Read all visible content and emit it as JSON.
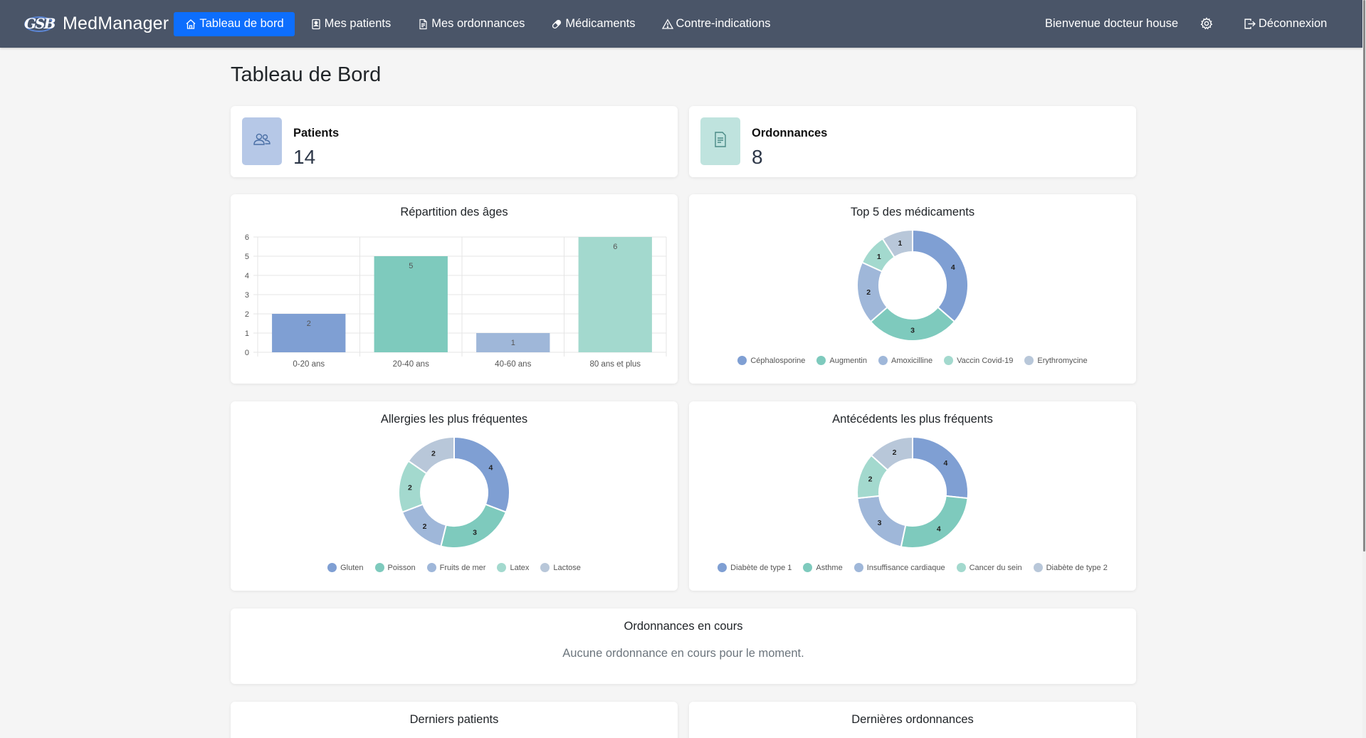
{
  "app": {
    "name": "MedManager",
    "logo_text": "GSB"
  },
  "nav": {
    "items": [
      {
        "label": "Tableau de bord",
        "icon": "home-icon",
        "active": true
      },
      {
        "label": "Mes patients",
        "icon": "patient-file-icon"
      },
      {
        "label": "Mes ordonnances",
        "icon": "document-icon"
      },
      {
        "label": "Médicaments",
        "icon": "pill-icon"
      },
      {
        "label": "Contre-indications",
        "icon": "warning-triangle-icon"
      }
    ],
    "welcome": "Bienvenue docteur house",
    "settings_icon": "gear-icon",
    "logout_label": "Déconnexion"
  },
  "page": {
    "title": "Tableau de Bord"
  },
  "stats": [
    {
      "label": "Patients",
      "value": "14",
      "icon": "users-icon",
      "color": "#b6c8e7"
    },
    {
      "label": "Ordonnances",
      "value": "8",
      "icon": "prescription-icon",
      "color": "#bfe3de"
    }
  ],
  "colors": {
    "blue": "#7f9fd3",
    "teal": "#7ecabd",
    "light_blue": "#9fb7d9",
    "light_teal": "#a3d9ce",
    "gray_blue": "#b8c7d9",
    "primary": "#0d6efd",
    "navbar": "#4a5568"
  },
  "chart_data": [
    {
      "type": "bar",
      "title": "Répartition des âges",
      "categories": [
        "0-20 ans",
        "20-40 ans",
        "40-60 ans",
        "80 ans et plus"
      ],
      "values": [
        2,
        5,
        1,
        6
      ],
      "colors": [
        "#7f9fd3",
        "#7ecabd",
        "#9fb7d9",
        "#a3d9ce"
      ],
      "ylim": [
        0,
        6
      ],
      "yticks": [
        "0",
        "1",
        "2",
        "3",
        "4",
        "5",
        "6"
      ],
      "value_labels": [
        "2",
        "5",
        "1",
        "6"
      ],
      "grid": true
    },
    {
      "type": "pie",
      "title": "Top 5 des médicaments",
      "categories": [
        "Céphalosporine",
        "Augmentin",
        "Amoxicilline",
        "Vaccin Covid-19",
        "Erythromycine"
      ],
      "values": [
        4,
        3,
        2,
        1,
        1
      ],
      "value_labels": [
        "4",
        "3",
        "2",
        "1",
        "1"
      ],
      "colors": [
        "#7f9fd3",
        "#7ecabd",
        "#9fb7d9",
        "#a3d9ce",
        "#b8c7d9"
      ],
      "legend": "bottom"
    },
    {
      "type": "pie",
      "title": "Allergies les plus fréquentes",
      "categories": [
        "Gluten",
        "Poisson",
        "Fruits de mer",
        "Latex",
        "Lactose"
      ],
      "values": [
        4,
        3,
        2,
        2,
        2
      ],
      "value_labels": [
        "4",
        "3",
        "2",
        "2",
        "2"
      ],
      "colors": [
        "#7f9fd3",
        "#7ecabd",
        "#9fb7d9",
        "#a3d9ce",
        "#b8c7d9"
      ],
      "legend": "bottom"
    },
    {
      "type": "pie",
      "title": "Antécédents les plus fréquents",
      "categories": [
        "Diabète de type 1",
        "Asthme",
        "Insuffisance cardiaque",
        "Cancer du sein",
        "Diabète de type 2"
      ],
      "values": [
        4,
        4,
        3,
        2,
        2
      ],
      "value_labels": [
        "4",
        "4",
        "3",
        "2",
        "2"
      ],
      "colors": [
        "#7f9fd3",
        "#7ecabd",
        "#9fb7d9",
        "#a3d9ce",
        "#b8c7d9"
      ],
      "legend": "bottom"
    }
  ],
  "current_prescriptions": {
    "title": "Ordonnances en cours",
    "empty": "Aucune ordonnance en cours pour le moment."
  },
  "recent": {
    "patients_title": "Derniers patients",
    "prescriptions_title": "Dernières ordonnances"
  }
}
